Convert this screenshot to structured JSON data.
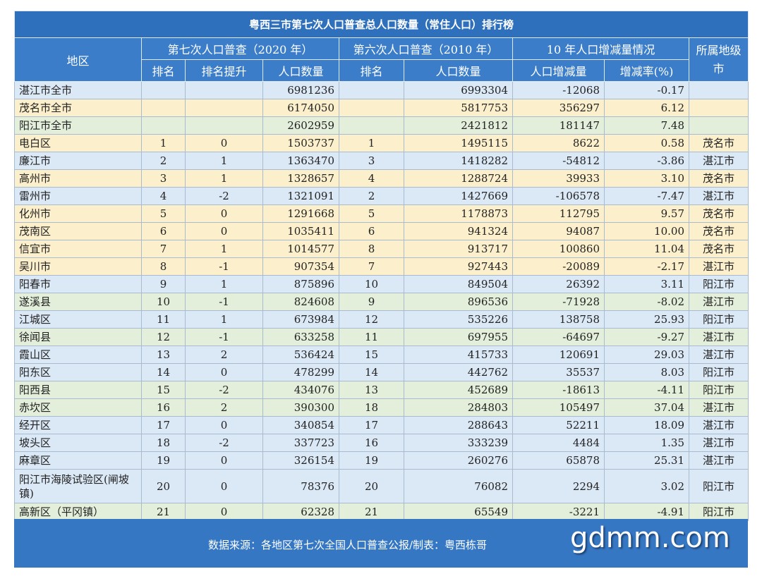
{
  "title": "粤西三市第七次人口普查总人口数量（常住人口）排行榜",
  "header": {
    "region": "地区",
    "census7": "第七次人口普查（2020 年）",
    "census6": "第六次人口普查（2010 年）",
    "change": "10 年人口增减量情况",
    "city": "所属地级市",
    "rank7": "排名",
    "rise": "排名提升",
    "pop7": "人口数量",
    "rank6": "排名",
    "pop6": "人口数量",
    "delta": "人口增减量",
    "rate": "增减率(%)"
  },
  "table": {
    "rows": [
      [
        "湛江市全市",
        null,
        null,
        "6981236",
        null,
        "6993304",
        "-12068",
        "-0.17",
        null
      ],
      [
        "茂名市全市",
        null,
        null,
        "6174050",
        null,
        "5817753",
        "356297",
        "6.12",
        null
      ],
      [
        "阳江市全市",
        null,
        null,
        "2602959",
        null,
        "2421812",
        "181147",
        "7.48",
        null
      ],
      [
        "电白区",
        "1",
        "0",
        "1503737",
        "1",
        "1495115",
        "8622",
        "0.58",
        "茂名市"
      ],
      [
        "廉江市",
        "2",
        "1",
        "1363470",
        "3",
        "1418282",
        "-54812",
        "-3.86",
        "湛江市"
      ],
      [
        "高州市",
        "3",
        "1",
        "1328657",
        "4",
        "1288724",
        "39933",
        "3.10",
        "茂名市"
      ],
      [
        "雷州市",
        "4",
        "-2",
        "1321091",
        "2",
        "1427669",
        "-106578",
        "-7.47",
        "湛江市"
      ],
      [
        "化州市",
        "5",
        "0",
        "1291668",
        "5",
        "1178873",
        "112795",
        "9.57",
        "茂名市"
      ],
      [
        "茂南区",
        "6",
        "0",
        "1035411",
        "6",
        "941324",
        "94087",
        "10.00",
        "茂名市"
      ],
      [
        "信宜市",
        "7",
        "1",
        "1014577",
        "8",
        "913717",
        "100860",
        "11.04",
        "茂名市"
      ],
      [
        "吴川市",
        "8",
        "-1",
        "907354",
        "7",
        "927443",
        "-20089",
        "-2.17",
        "湛江市"
      ],
      [
        "阳春市",
        "9",
        "1",
        "875896",
        "10",
        "849504",
        "26392",
        "3.11",
        "阳江市"
      ],
      [
        "遂溪县",
        "10",
        "-1",
        "824608",
        "9",
        "896536",
        "-71928",
        "-8.02",
        "湛江市"
      ],
      [
        "江城区",
        "11",
        "1",
        "673984",
        "12",
        "535226",
        "138758",
        "25.93",
        "阳江市"
      ],
      [
        "徐闻县",
        "12",
        "-1",
        "633258",
        "11",
        "697955",
        "-64697",
        "-9.27",
        "湛江市"
      ],
      [
        "霞山区",
        "13",
        "2",
        "536424",
        "15",
        "415733",
        "120691",
        "29.03",
        "湛江市"
      ],
      [
        "阳东区",
        "14",
        "0",
        "478299",
        "14",
        "442762",
        "35537",
        "8.03",
        "阳江市"
      ],
      [
        "阳西县",
        "15",
        "-2",
        "434076",
        "13",
        "452689",
        "-18613",
        "-4.11",
        "阳江市"
      ],
      [
        "赤坎区",
        "16",
        "2",
        "390300",
        "18",
        "284803",
        "105497",
        "37.04",
        "湛江市"
      ],
      [
        "经开区",
        "17",
        "0",
        "340854",
        "17",
        "288643",
        "52211",
        "18.09",
        "湛江市"
      ],
      [
        "坡头区",
        "18",
        "-2",
        "337723",
        "16",
        "333239",
        "4484",
        "1.35",
        "湛江市"
      ],
      [
        "麻章区",
        "19",
        "0",
        "326154",
        "19",
        "260276",
        "65878",
        "25.31",
        "湛江市"
      ],
      [
        "阳江市海陵试验区(闸坡镇)",
        "20",
        "0",
        "78376",
        "20",
        "76082",
        "2294",
        "3.02",
        "阳江市"
      ],
      [
        "高新区（平冈镇）",
        "21",
        "0",
        "62328",
        "21",
        "65549",
        "-3221",
        "-4.91",
        "阳江市"
      ]
    ]
  },
  "footer": {
    "source": "数据来源：各地区第七次全国人口普查公报/制表：粤西栋哥",
    "watermark": "gdmm.com"
  }
}
